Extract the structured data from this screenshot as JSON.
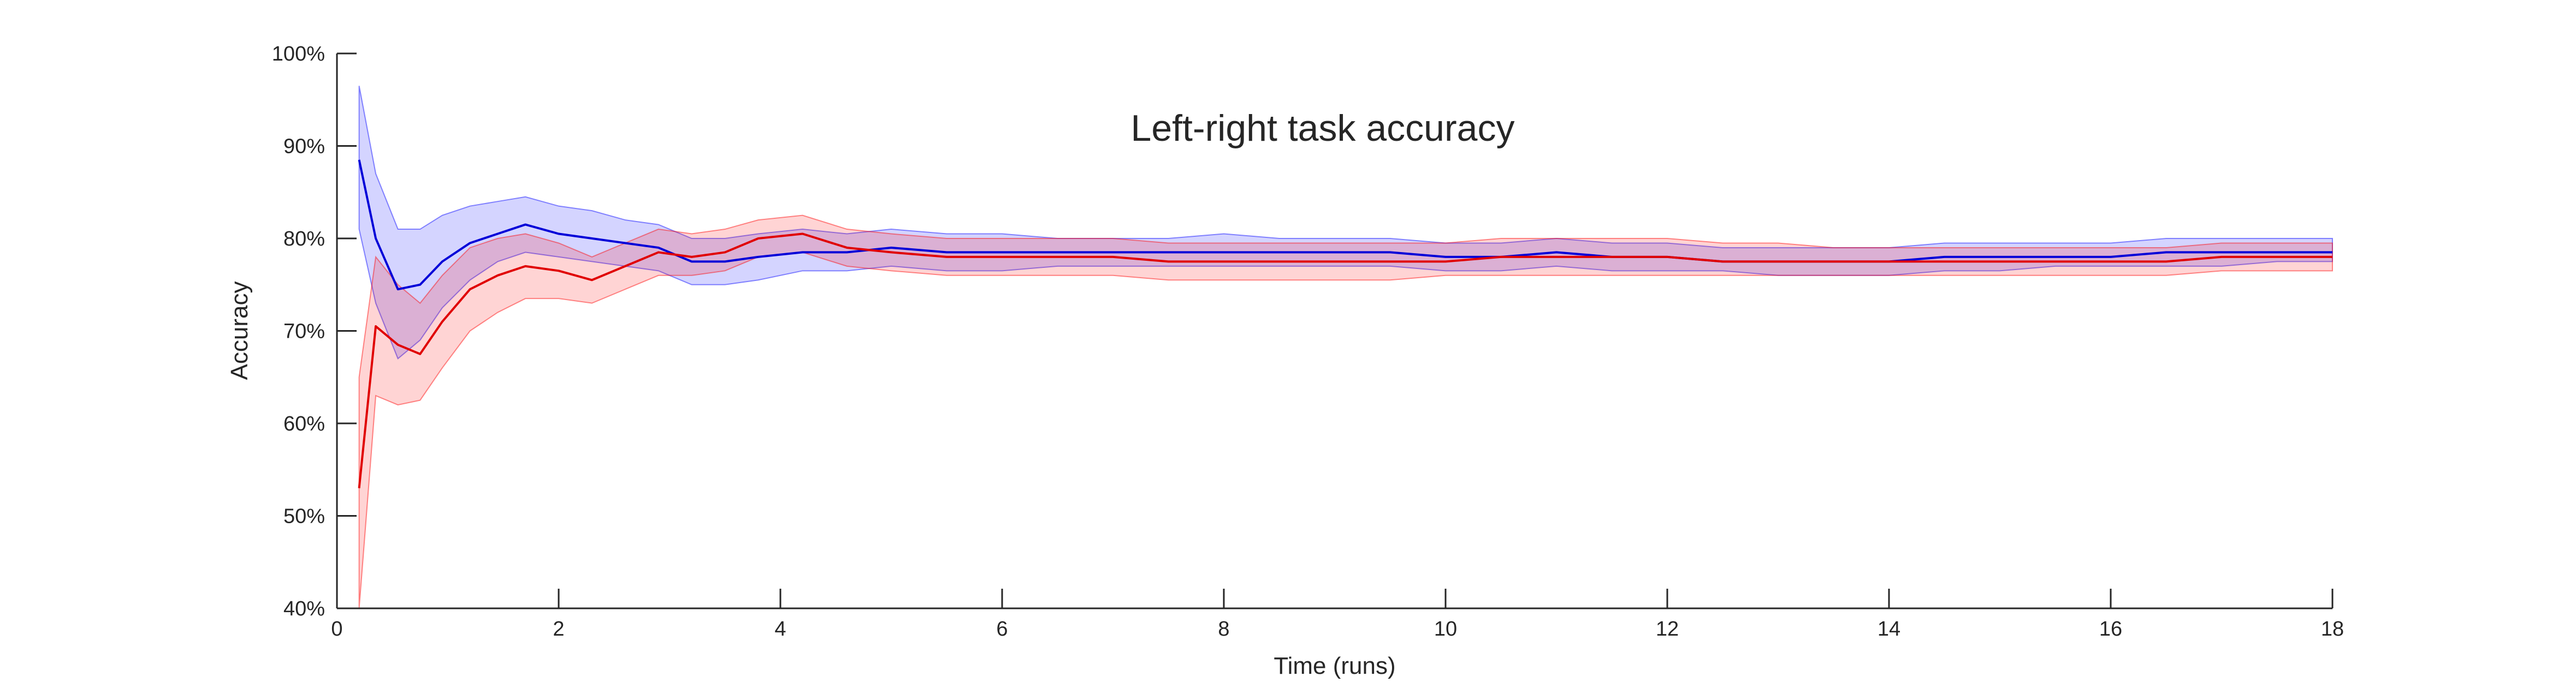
{
  "chart_data": {
    "type": "line",
    "title": "Left-right task accuracy",
    "xlabel": "Time (runs)",
    "ylabel": "Accuracy",
    "xlim": [
      0,
      18
    ],
    "ylim": [
      40,
      100
    ],
    "xticks": [
      0,
      2,
      4,
      6,
      8,
      10,
      12,
      14,
      16,
      18
    ],
    "xtick_labels": [
      "0",
      "2",
      "4",
      "6",
      "8",
      "10",
      "12",
      "14",
      "16",
      "18"
    ],
    "yticks": [
      40,
      50,
      60,
      70,
      80,
      90,
      100
    ],
    "ytick_labels": [
      "40%",
      "50%",
      "60%",
      "70%",
      "80%",
      "90%",
      "100%"
    ],
    "grid": false,
    "series": [
      {
        "color": "#0000d8",
        "band_color": "#0000ff",
        "x": [
          0.2,
          0.35,
          0.55,
          0.75,
          0.95,
          1.2,
          1.45,
          1.7,
          2.0,
          2.3,
          2.6,
          2.9,
          3.2,
          3.5,
          3.8,
          4.2,
          4.6,
          5.0,
          5.5,
          6.0,
          6.5,
          7.0,
          7.5,
          8.0,
          8.5,
          9.0,
          9.5,
          10.0,
          10.5,
          11.0,
          11.5,
          12.0,
          12.5,
          13.0,
          13.5,
          14.0,
          14.5,
          15.0,
          15.5,
          16.0,
          16.5,
          17.0,
          17.5,
          18.0
        ],
        "mean": [
          88.5,
          80.0,
          74.5,
          75.0,
          77.5,
          79.5,
          80.5,
          81.5,
          80.5,
          80.0,
          79.5,
          79.0,
          77.5,
          77.5,
          78.0,
          78.5,
          78.5,
          79.0,
          78.5,
          78.5,
          78.5,
          78.5,
          78.5,
          78.5,
          78.5,
          78.5,
          78.5,
          78.0,
          78.0,
          78.5,
          78.0,
          78.0,
          77.5,
          77.5,
          77.5,
          77.5,
          78.0,
          78.0,
          78.0,
          78.0,
          78.5,
          78.5,
          78.5,
          78.5
        ],
        "lower": [
          81.0,
          73.0,
          67.0,
          69.0,
          72.5,
          75.5,
          77.5,
          78.5,
          78.0,
          77.5,
          77.0,
          76.5,
          75.0,
          75.0,
          75.5,
          76.5,
          76.5,
          77.0,
          76.5,
          76.5,
          77.0,
          77.0,
          77.0,
          77.0,
          77.0,
          77.0,
          77.0,
          76.5,
          76.5,
          77.0,
          76.5,
          76.5,
          76.5,
          76.0,
          76.0,
          76.0,
          76.5,
          76.5,
          77.0,
          77.0,
          77.0,
          77.0,
          77.5,
          77.5
        ],
        "upper": [
          96.5,
          87.0,
          81.0,
          81.0,
          82.5,
          83.5,
          84.0,
          84.5,
          83.5,
          83.0,
          82.0,
          81.5,
          80.0,
          80.0,
          80.5,
          81.0,
          80.5,
          81.0,
          80.5,
          80.5,
          80.0,
          80.0,
          80.0,
          80.5,
          80.0,
          80.0,
          80.0,
          79.5,
          79.5,
          80.0,
          79.5,
          79.5,
          79.0,
          79.0,
          79.0,
          79.0,
          79.5,
          79.5,
          79.5,
          79.5,
          80.0,
          80.0,
          80.0,
          80.0
        ]
      },
      {
        "color": "#e00000",
        "band_color": "#ff0000",
        "x": [
          0.2,
          0.35,
          0.55,
          0.75,
          0.95,
          1.2,
          1.45,
          1.7,
          2.0,
          2.3,
          2.6,
          2.9,
          3.2,
          3.5,
          3.8,
          4.2,
          4.6,
          5.0,
          5.5,
          6.0,
          6.5,
          7.0,
          7.5,
          8.0,
          8.5,
          9.0,
          9.5,
          10.0,
          10.5,
          11.0,
          11.5,
          12.0,
          12.5,
          13.0,
          13.5,
          14.0,
          14.5,
          15.0,
          15.5,
          16.0,
          16.5,
          17.0,
          17.5,
          18.0
        ],
        "mean": [
          53.0,
          70.5,
          68.5,
          67.5,
          71.0,
          74.5,
          76.0,
          77.0,
          76.5,
          75.5,
          77.0,
          78.5,
          78.0,
          78.5,
          80.0,
          80.5,
          79.0,
          78.5,
          78.0,
          78.0,
          78.0,
          78.0,
          77.5,
          77.5,
          77.5,
          77.5,
          77.5,
          77.5,
          78.0,
          78.0,
          78.0,
          78.0,
          77.5,
          77.5,
          77.5,
          77.5,
          77.5,
          77.5,
          77.5,
          77.5,
          77.5,
          78.0,
          78.0,
          78.0
        ],
        "lower": [
          40.0,
          63.0,
          62.0,
          62.5,
          66.0,
          70.0,
          72.0,
          73.5,
          73.5,
          73.0,
          74.5,
          76.0,
          76.0,
          76.5,
          78.0,
          78.5,
          77.0,
          76.5,
          76.0,
          76.0,
          76.0,
          76.0,
          75.5,
          75.5,
          75.5,
          75.5,
          75.5,
          76.0,
          76.0,
          76.0,
          76.0,
          76.0,
          76.0,
          76.0,
          76.0,
          76.0,
          76.0,
          76.0,
          76.0,
          76.0,
          76.0,
          76.5,
          76.5,
          76.5
        ],
        "upper": [
          65.0,
          78.0,
          75.0,
          73.0,
          76.0,
          79.0,
          80.0,
          80.5,
          79.5,
          78.0,
          79.5,
          81.0,
          80.5,
          81.0,
          82.0,
          82.5,
          81.0,
          80.5,
          80.0,
          80.0,
          80.0,
          80.0,
          79.5,
          79.5,
          79.5,
          79.5,
          79.5,
          79.5,
          80.0,
          80.0,
          80.0,
          80.0,
          79.5,
          79.5,
          79.0,
          79.0,
          79.0,
          79.0,
          79.0,
          79.0,
          79.0,
          79.5,
          79.5,
          79.5
        ]
      }
    ]
  }
}
